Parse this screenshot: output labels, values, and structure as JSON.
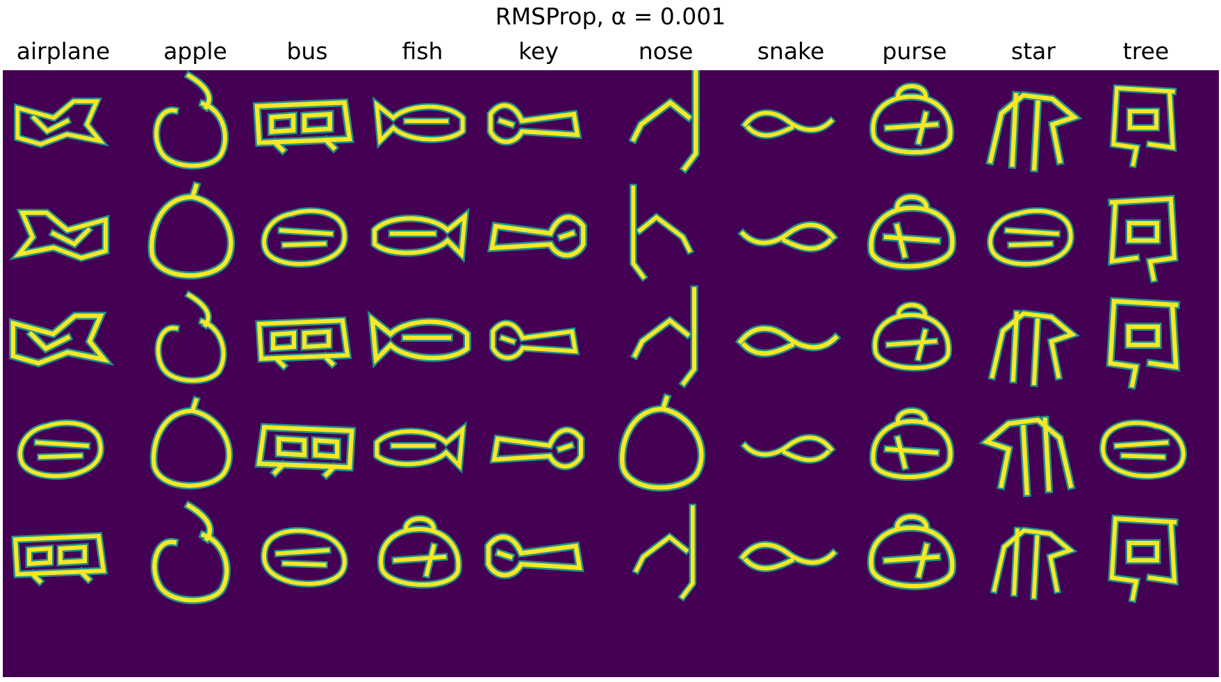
{
  "title": "RMSProp, α = 0.001",
  "columns": [
    {
      "label": "airplane"
    },
    {
      "label": "apple"
    },
    {
      "label": "bus"
    },
    {
      "label": "fish"
    },
    {
      "label": "key"
    },
    {
      "label": "nose"
    },
    {
      "label": "snake"
    },
    {
      "label": "purse"
    },
    {
      "label": "star"
    },
    {
      "label": "tree"
    }
  ],
  "rows": 5,
  "colors": {
    "background": "#440154",
    "stroke": "#fde725",
    "stroke_edge": "#21918c"
  }
}
